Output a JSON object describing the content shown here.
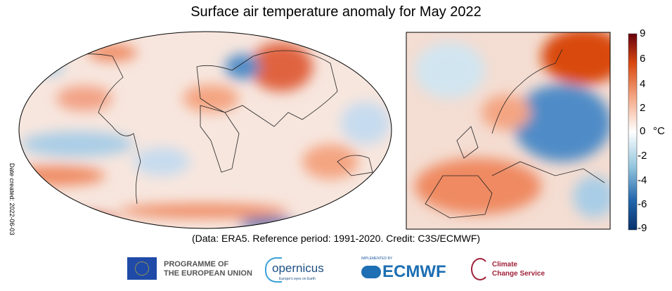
{
  "chart_data": {
    "type": "heatmap",
    "title": "Surface air temperature anomaly for May 2022",
    "subtitle": "(Data: ERA5.  Reference period: 1991-2020.  Credit: C3S/ECMWF)",
    "panels": [
      "Global map (Robinson projection)",
      "Europe regional map"
    ],
    "colorbar": {
      "label": "°C",
      "range": [
        -9,
        9
      ],
      "ticks": [
        "9",
        "6",
        "4",
        "2",
        "0",
        "-2",
        "-4",
        "-6",
        "-9"
      ],
      "colors": {
        "max": "#67000d",
        "warm": "#e6550d",
        "neutral": "#ffffff",
        "cool": "#6baed6",
        "min": "#08306b"
      }
    },
    "side_note": "Date created: 2022-06-03"
  },
  "footer": {
    "eu_line1": "PROGRAMME OF",
    "eu_line2": "THE EUROPEAN UNION",
    "copernicus": "opernicus",
    "copernicus_sub": "Europe's eyes on Earth",
    "ecmwf_small": "IMPLEMENTED BY",
    "ecmwf": "ECMWF",
    "c3s_line1": "Climate",
    "c3s_line2": "Change Service"
  }
}
